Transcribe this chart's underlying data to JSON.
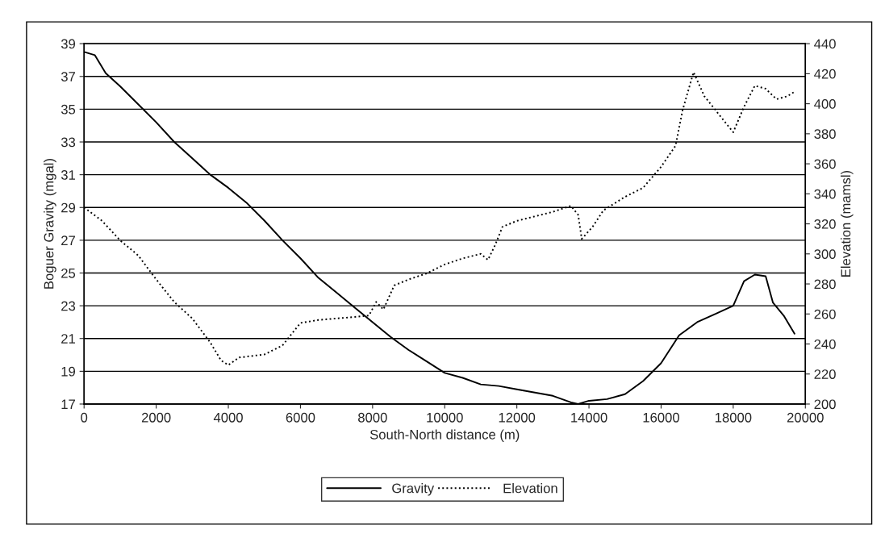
{
  "chart_data": {
    "type": "line",
    "xlabel": "South-North distance (m)",
    "ylabel": "Boguer Gravity (mgal)",
    "y2label": "Elevation (mamsl)",
    "xlim": [
      0,
      20000
    ],
    "xticks": [
      0,
      2000,
      4000,
      6000,
      8000,
      10000,
      12000,
      14000,
      16000,
      18000,
      20000
    ],
    "ylim": [
      17,
      39
    ],
    "yticks": [
      17,
      19,
      21,
      23,
      25,
      27,
      29,
      31,
      33,
      35,
      37,
      39
    ],
    "y2lim": [
      200,
      440
    ],
    "y2ticks": [
      200,
      220,
      240,
      260,
      280,
      300,
      320,
      340,
      360,
      380,
      400,
      420,
      440
    ],
    "grid": "y",
    "legend": "bottom",
    "marker": "none",
    "series": [
      {
        "name": "Gravity",
        "color": "#000000",
        "line_style": "solid",
        "x": [
          0,
          300,
          600,
          1000,
          1500,
          2000,
          2500,
          3000,
          3500,
          4000,
          4500,
          5000,
          5500,
          6000,
          6500,
          7000,
          7500,
          8000,
          8500,
          9000,
          9500,
          10000,
          10500,
          11000,
          11500,
          12000,
          12500,
          13000,
          13500,
          13700,
          14000,
          14500,
          15000,
          15500,
          16000,
          16500,
          17000,
          17500,
          18000,
          18300,
          18600,
          18900,
          19100,
          19400,
          19700
        ],
        "values": [
          38.5,
          38.3,
          37.2,
          36.4,
          35.3,
          34.2,
          33.0,
          32.0,
          31.0,
          30.2,
          29.3,
          28.2,
          27.0,
          25.9,
          24.7,
          23.8,
          22.9,
          22.0,
          21.1,
          20.3,
          19.6,
          18.9,
          18.6,
          18.2,
          18.1,
          17.9,
          17.7,
          17.5,
          17.1,
          17.0,
          17.2,
          17.3,
          17.6,
          18.4,
          19.5,
          21.2,
          22.0,
          22.5,
          23.0,
          24.5,
          24.9,
          24.8,
          23.2,
          22.4,
          21.3
        ]
      },
      {
        "name": "Elevation",
        "color": "#000000",
        "line_style": "dotted",
        "axis": "y2",
        "x": [
          0,
          500,
          1000,
          1500,
          2000,
          2500,
          3000,
          3500,
          3800,
          4000,
          4300,
          5000,
          5500,
          6000,
          6500,
          7000,
          7500,
          7900,
          8100,
          8300,
          8600,
          9000,
          9500,
          10000,
          10500,
          11000,
          11200,
          11400,
          11600,
          12000,
          12500,
          13000,
          13500,
          13700,
          13800,
          14100,
          14400,
          15000,
          15500,
          16000,
          16400,
          16600,
          16900,
          17200,
          17600,
          18000,
          18300,
          18600,
          18900,
          19200,
          19500,
          19700
        ],
        "values": [
          331,
          322,
          309,
          299,
          283,
          268,
          257,
          241,
          229,
          226,
          231,
          233,
          239,
          254,
          256,
          257,
          258,
          259,
          268,
          263,
          279,
          283,
          287,
          293,
          297,
          300,
          296,
          306,
          318,
          322,
          325,
          328,
          332,
          326,
          310,
          318,
          329,
          338,
          344,
          358,
          372,
          396,
          421,
          405,
          393,
          381,
          398,
          412,
          410,
          403,
          405,
          408
        ]
      }
    ]
  }
}
